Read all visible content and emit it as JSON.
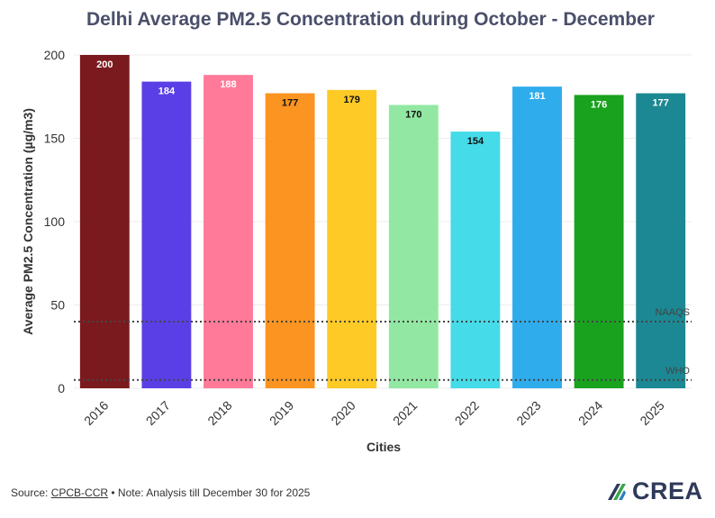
{
  "chart_data": {
    "type": "bar",
    "title": "Delhi Average PM2.5 Concentration during October - December",
    "xlabel": "Cities",
    "ylabel": "Average PM2.5 Concentration (µg/m3)",
    "ylim": [
      0,
      200
    ],
    "yticks": [
      "0",
      "50",
      "100",
      "150",
      "200"
    ],
    "categories": [
      "2016",
      "2017",
      "2018",
      "2019",
      "2020",
      "2021",
      "2022",
      "2023",
      "2024",
      "2025"
    ],
    "values": [
      200,
      184,
      188,
      177,
      179,
      170,
      154,
      181,
      176,
      177
    ],
    "colors": [
      "#7b1a1e",
      "#5a3fe6",
      "#ff7a98",
      "#fb9420",
      "#fdca26",
      "#92e8a2",
      "#45dbe8",
      "#2eacec",
      "#19a21e",
      "#1c8893"
    ],
    "label_colors": [
      "#ffffff",
      "#ffffff",
      "#ffffff",
      "#111111",
      "#111111",
      "#111111",
      "#111111",
      "#ffffff",
      "#ffffff",
      "#ffffff"
    ],
    "reference_lines": [
      {
        "name": "NAAQS",
        "value": 40
      },
      {
        "name": "WHO",
        "value": 5
      }
    ]
  },
  "footer": {
    "source_prefix": "Source: ",
    "source_link": "CPCB-CCR",
    "note": " • Note: Analysis till December 30 for 2025"
  },
  "logo": {
    "text": "CREA"
  }
}
